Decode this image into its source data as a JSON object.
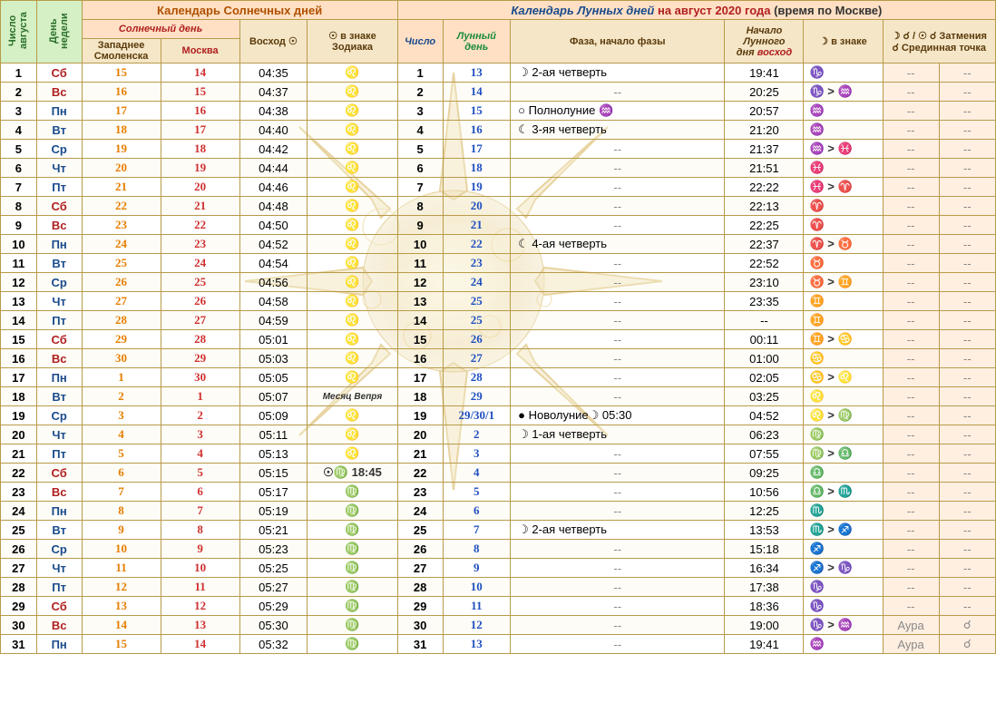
{
  "colors": {
    "border": "#b89b4a",
    "green": "#d4f0c4",
    "peach": "#ffe0c4",
    "brown": "#f5e6c8",
    "orange": "#e67e00",
    "blue": "#1a4b8c",
    "red": "#b02020",
    "lunarblue": "#2050c0"
  },
  "headers": {
    "num": "Число августа",
    "dow": "День недели",
    "solar_cal": "Календарь Солнечных  дней",
    "lunar_cal_1": "Календарь Лунных дней",
    "lunar_cal_2": "на август 2020 года",
    "lunar_cal_3": "(время по Москве)",
    "solar_day": "Солнечный день",
    "smolensk": "Западнее Смоленска",
    "moscow": "Москва",
    "sunrise": "Восход ☉",
    "sun_sign": "☉ в знаке Зодиака",
    "lnum": "Число",
    "lday_1": "Лунный",
    "lday_2": "день",
    "phase": "Фаза, начало фазы",
    "moonrise_1": "Начало Лунного",
    "moonrise_2": "дня",
    "moonrise_2r": "восход",
    "moon_sign": "☽ в знаке",
    "ecl_1": "☽ ☌ / ☉ ☌  Затмения",
    "ecl_2": "☌ Срединная точка"
  },
  "rows": [
    {
      "n": "1",
      "dow": "Сб",
      "dc": "r",
      "s1": "15",
      "s2": "14",
      "sr": "04:35",
      "z": "♌",
      "ln": "1",
      "ld": "13",
      "ph": "☽ 2-ая четверть",
      "mr": "19:41",
      "ms": "♑",
      "e1": "--",
      "e2": "--"
    },
    {
      "n": "2",
      "dow": "Вс",
      "dc": "r",
      "s1": "16",
      "s2": "15",
      "sr": "04:37",
      "z": "♌",
      "ln": "2",
      "ld": "14",
      "ph": "--",
      "mr": "20:25",
      "ms": "♑ > ♒",
      "e1": "--",
      "e2": "--"
    },
    {
      "n": "3",
      "dow": "Пн",
      "dc": "b",
      "s1": "17",
      "s2": "16",
      "sr": "04:38",
      "z": "♌",
      "ln": "3",
      "ld": "15",
      "ph": "○ Полнолуние ♒",
      "mr": "20:57",
      "ms": "♒",
      "e1": "--",
      "e2": "--"
    },
    {
      "n": "4",
      "dow": "Вт",
      "dc": "b",
      "s1": "18",
      "s2": "17",
      "sr": "04:40",
      "z": "♌",
      "ln": "4",
      "ld": "16",
      "ph": "☾ 3-яя четверть",
      "mr": "21:20",
      "ms": "♒",
      "e1": "--",
      "e2": "--"
    },
    {
      "n": "5",
      "dow": "Ср",
      "dc": "b",
      "s1": "19",
      "s2": "18",
      "sr": "04:42",
      "z": "♌",
      "ln": "5",
      "ld": "17",
      "ph": "--",
      "mr": "21:37",
      "ms": "♒ > ♓",
      "e1": "--",
      "e2": "--"
    },
    {
      "n": "6",
      "dow": "Чт",
      "dc": "b",
      "s1": "20",
      "s2": "19",
      "sr": "04:44",
      "z": "♌",
      "ln": "6",
      "ld": "18",
      "ph": "--",
      "mr": "21:51",
      "ms": "♓",
      "e1": "--",
      "e2": "--"
    },
    {
      "n": "7",
      "dow": "Пт",
      "dc": "b",
      "s1": "21",
      "s2": "20",
      "sr": "04:46",
      "z": "♌",
      "ln": "7",
      "ld": "19",
      "ph": "--",
      "mr": "22:22",
      "ms": "♓ > ♈",
      "e1": "--",
      "e2": "--"
    },
    {
      "n": "8",
      "dow": "Сб",
      "dc": "r",
      "s1": "22",
      "s2": "21",
      "sr": "04:48",
      "z": "♌",
      "ln": "8",
      "ld": "20",
      "ph": "--",
      "mr": "22:13",
      "ms": "♈",
      "e1": "--",
      "e2": "--"
    },
    {
      "n": "9",
      "dow": "Вс",
      "dc": "r",
      "s1": "23",
      "s2": "22",
      "sr": "04:50",
      "z": "♌",
      "ln": "9",
      "ld": "21",
      "ph": "--",
      "mr": "22:25",
      "ms": "♈",
      "e1": "--",
      "e2": "--"
    },
    {
      "n": "10",
      "dow": "Пн",
      "dc": "b",
      "s1": "24",
      "s2": "23",
      "sr": "04:52",
      "z": "♌",
      "ln": "10",
      "ld": "22",
      "ph": "☾ 4-ая четверть",
      "mr": "22:37",
      "ms": "♈ > ♉",
      "e1": "--",
      "e2": "--"
    },
    {
      "n": "11",
      "dow": "Вт",
      "dc": "b",
      "s1": "25",
      "s2": "24",
      "sr": "04:54",
      "z": "♌",
      "ln": "11",
      "ld": "23",
      "ph": "--",
      "mr": "22:52",
      "ms": "♉",
      "e1": "--",
      "e2": "--"
    },
    {
      "n": "12",
      "dow": "Ср",
      "dc": "b",
      "s1": "26",
      "s2": "25",
      "sr": "04:56",
      "z": "♌",
      "ln": "12",
      "ld": "24",
      "ph": "--",
      "mr": "23:10",
      "ms": "♉ > ♊",
      "e1": "--",
      "e2": "--"
    },
    {
      "n": "13",
      "dow": "Чт",
      "dc": "b",
      "s1": "27",
      "s2": "26",
      "sr": "04:58",
      "z": "♌",
      "ln": "13",
      "ld": "25",
      "ph": "--",
      "mr": "23:35",
      "ms": "♊",
      "e1": "--",
      "e2": "--"
    },
    {
      "n": "14",
      "dow": "Пт",
      "dc": "b",
      "s1": "28",
      "s2": "27",
      "sr": "04:59",
      "z": "♌",
      "ln": "14",
      "ld": "25",
      "ph": "--",
      "mr": "--",
      "ms": "♊",
      "e1": "--",
      "e2": "--"
    },
    {
      "n": "15",
      "dow": "Сб",
      "dc": "r",
      "s1": "29",
      "s2": "28",
      "sr": "05:01",
      "z": "♌",
      "ln": "15",
      "ld": "26",
      "ph": "--",
      "mr": "00:11",
      "ms": "♊ > ♋",
      "e1": "--",
      "e2": "--"
    },
    {
      "n": "16",
      "dow": "Вс",
      "dc": "r",
      "s1": "30",
      "s2": "29",
      "sr": "05:03",
      "z": "♌",
      "ln": "16",
      "ld": "27",
      "ph": "--",
      "mr": "01:00",
      "ms": "♋",
      "e1": "--",
      "e2": "--"
    },
    {
      "n": "17",
      "dow": "Пн",
      "dc": "b",
      "s1": "1",
      "s2": "30",
      "sr": "05:05",
      "z": "♌",
      "ln": "17",
      "ld": "28",
      "ph": "--",
      "mr": "02:05",
      "ms": "♋ > ♌",
      "e1": "--",
      "e2": "--"
    },
    {
      "n": "18",
      "dow": "Вт",
      "dc": "b",
      "s1": "2",
      "s2": "1",
      "sr": "05:07",
      "z": "Месяц Вепря",
      "zsmall": true,
      "ln": "18",
      "ld": "29",
      "ph": "--",
      "mr": "03:25",
      "ms": "♌",
      "e1": "--",
      "e2": "--"
    },
    {
      "n": "19",
      "dow": "Ср",
      "dc": "b",
      "s1": "3",
      "s2": "2",
      "sr": "05:09",
      "z": "♌",
      "ln": "19",
      "ld": "29/30/1",
      "ph": "● Новолуние☽ 05:30",
      "mr": "04:52",
      "ms": "♌ > ♍",
      "e1": "--",
      "e2": "--"
    },
    {
      "n": "20",
      "dow": "Чт",
      "dc": "b",
      "s1": "4",
      "s2": "3",
      "sr": "05:11",
      "z": "♌",
      "ln": "20",
      "ld": "2",
      "ph": "☽ 1-ая четверть",
      "mr": "06:23",
      "ms": "♍",
      "e1": "--",
      "e2": "--"
    },
    {
      "n": "21",
      "dow": "Пт",
      "dc": "b",
      "s1": "5",
      "s2": "4",
      "sr": "05:13",
      "z": "♌",
      "ln": "21",
      "ld": "3",
      "ph": "--",
      "mr": "07:55",
      "ms": "♍ > ♎",
      "e1": "--",
      "e2": "--"
    },
    {
      "n": "22",
      "dow": "Сб",
      "dc": "r",
      "s1": "6",
      "s2": "5",
      "sr": "05:15",
      "z": "☉♍ 18:45",
      "ln": "22",
      "ld": "4",
      "ph": "--",
      "mr": "09:25",
      "ms": "♎",
      "e1": "--",
      "e2": "--"
    },
    {
      "n": "23",
      "dow": "Вс",
      "dc": "r",
      "s1": "7",
      "s2": "6",
      "sr": "05:17",
      "z": "♍",
      "ln": "23",
      "ld": "5",
      "ph": "--",
      "mr": "10:56",
      "ms": "♎ > ♏",
      "e1": "--",
      "e2": "--"
    },
    {
      "n": "24",
      "dow": "Пн",
      "dc": "b",
      "s1": "8",
      "s2": "7",
      "sr": "05:19",
      "z": "♍",
      "ln": "24",
      "ld": "6",
      "ph": "--",
      "mr": "12:25",
      "ms": "♏",
      "e1": "--",
      "e2": "--"
    },
    {
      "n": "25",
      "dow": "Вт",
      "dc": "b",
      "s1": "9",
      "s2": "8",
      "sr": "05:21",
      "z": "♍",
      "ln": "25",
      "ld": "7",
      "ph": "☽ 2-ая четверть",
      "mr": "13:53",
      "ms": "♏ > ♐",
      "e1": "--",
      "e2": "--"
    },
    {
      "n": "26",
      "dow": "Ср",
      "dc": "b",
      "s1": "10",
      "s2": "9",
      "sr": "05:23",
      "z": "♍",
      "ln": "26",
      "ld": "8",
      "ph": "--",
      "mr": "15:18",
      "ms": "♐",
      "e1": "--",
      "e2": "--"
    },
    {
      "n": "27",
      "dow": "Чт",
      "dc": "b",
      "s1": "11",
      "s2": "10",
      "sr": "05:25",
      "z": "♍",
      "ln": "27",
      "ld": "9",
      "ph": "--",
      "mr": "16:34",
      "ms": "♐ > ♑",
      "e1": "--",
      "e2": "--"
    },
    {
      "n": "28",
      "dow": "Пт",
      "dc": "b",
      "s1": "12",
      "s2": "11",
      "sr": "05:27",
      "z": "♍",
      "ln": "28",
      "ld": "10",
      "ph": "--",
      "mr": "17:38",
      "ms": "♑",
      "e1": "--",
      "e2": "--"
    },
    {
      "n": "29",
      "dow": "Сб",
      "dc": "r",
      "s1": "13",
      "s2": "12",
      "sr": "05:29",
      "z": "♍",
      "ln": "29",
      "ld": "11",
      "ph": "--",
      "mr": "18:36",
      "ms": "♑",
      "e1": "--",
      "e2": "--"
    },
    {
      "n": "30",
      "dow": "Вс",
      "dc": "r",
      "s1": "14",
      "s2": "13",
      "sr": "05:30",
      "z": "♍",
      "ln": "30",
      "ld": "12",
      "ph": "--",
      "mr": "19:00",
      "ms": "♑ > ♒",
      "e1": "Аура",
      "e2": "☌"
    },
    {
      "n": "31",
      "dow": "Пн",
      "dc": "b",
      "s1": "15",
      "s2": "14",
      "sr": "05:32",
      "z": "♍",
      "ln": "31",
      "ld": "13",
      "ph": "--",
      "mr": "19:41",
      "ms": "♒",
      "e1": "Аура",
      "e2": "☌"
    }
  ]
}
